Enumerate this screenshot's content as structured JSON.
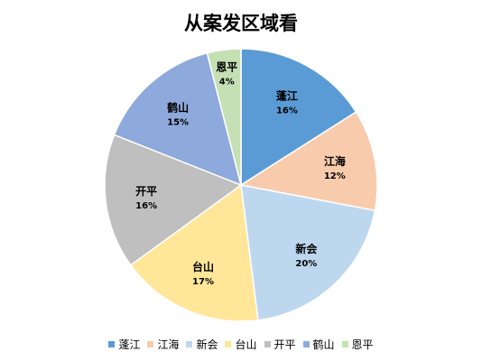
{
  "title": "从案发区域看",
  "chart_data": {
    "type": "pie",
    "title": "从案发区域看",
    "start_angle_deg": 0,
    "direction": "clockwise",
    "legend_position": "bottom",
    "slices": [
      {
        "label": "蓬江",
        "value": 16,
        "display": "16%",
        "color": "#5B9BD5"
      },
      {
        "label": "江海",
        "value": 12,
        "display": "12%",
        "color": "#F8CBAD"
      },
      {
        "label": "新会",
        "value": 20,
        "display": "20%",
        "color": "#BDD7EE"
      },
      {
        "label": "台山",
        "value": 17,
        "display": "17%",
        "color": "#FFE699"
      },
      {
        "label": "开平",
        "value": 16,
        "display": "16%",
        "color": "#BFBFBF"
      },
      {
        "label": "鹤山",
        "value": 15,
        "display": "15%",
        "color": "#8EA9DB"
      },
      {
        "label": "恩平",
        "value": 4,
        "display": "4%",
        "color": "#C5E0B4"
      }
    ]
  }
}
